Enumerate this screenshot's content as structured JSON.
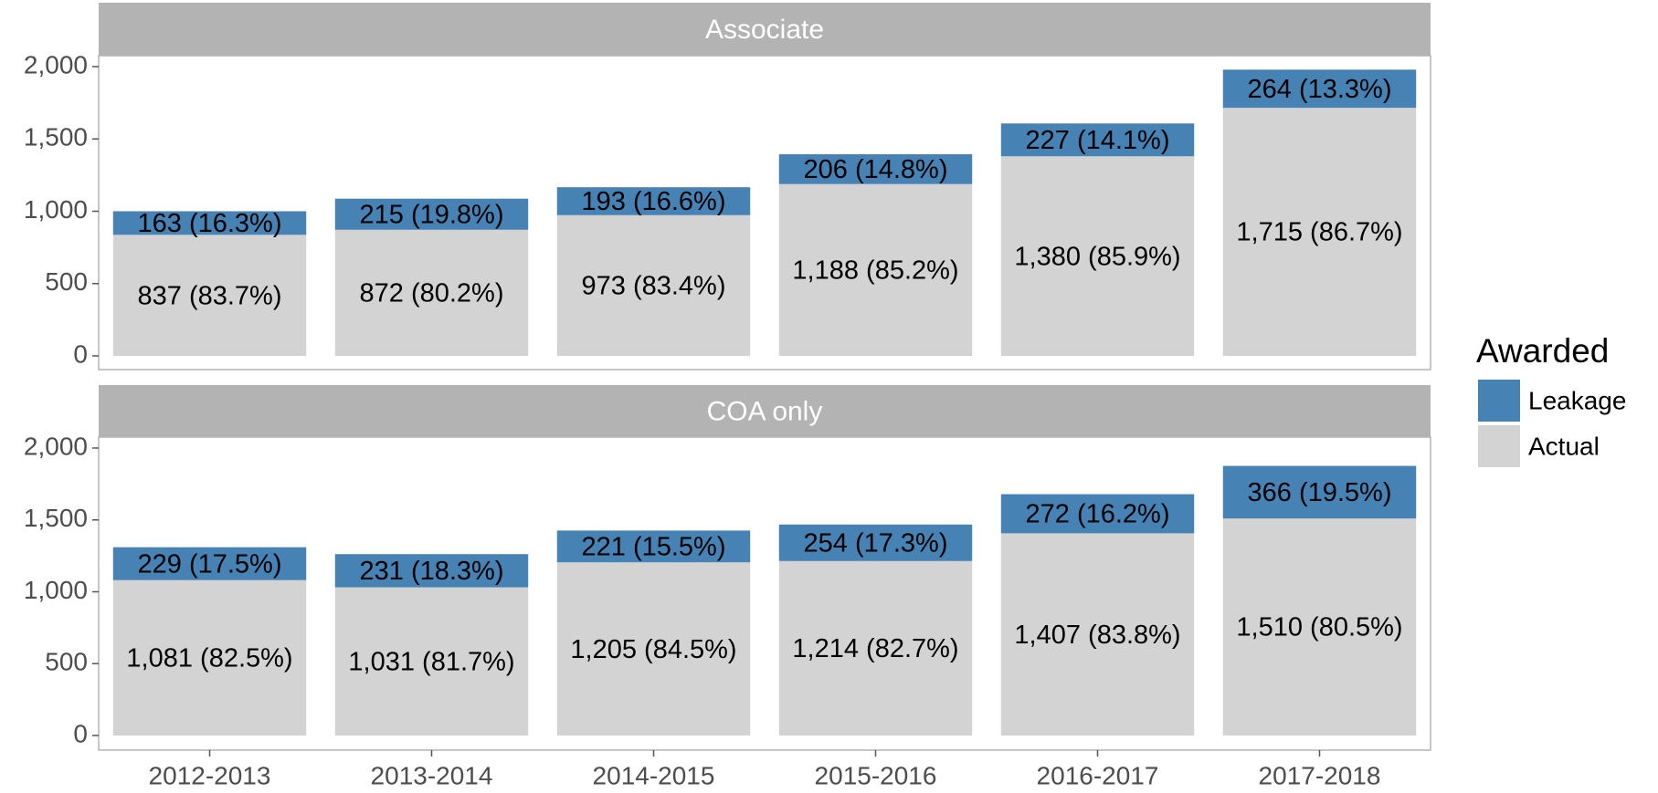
{
  "chart_data": {
    "type": "bar",
    "stacked": true,
    "categories": [
      "2012-2013",
      "2013-2014",
      "2014-2015",
      "2015-2016",
      "2016-2017",
      "2017-2018"
    ],
    "legend_title": "Awarded",
    "legend_position": "right",
    "series": [
      {
        "name": "Leakage",
        "color": "#4682b4"
      },
      {
        "name": "Actual",
        "color": "#d3d3d3"
      }
    ],
    "ylim": [
      0,
      2000
    ],
    "yticks": [
      0,
      500,
      {
        "value": 1000,
        "label": "1,000"
      },
      {
        "value": 1500,
        "label": "1,500"
      },
      {
        "value": 2000,
        "label": "2,000"
      }
    ],
    "panels": [
      {
        "title": "Associate",
        "values": [
          [
            163,
            215,
            193,
            206,
            227,
            264
          ],
          [
            837,
            872,
            973,
            1188,
            1380,
            1715
          ]
        ],
        "value_labels": [
          [
            "163 (16.3%)",
            "215 (19.8%)",
            "193 (16.6%)",
            "206 (14.8%)",
            "227 (14.1%)",
            "264 (13.3%)"
          ],
          [
            "837 (83.7%)",
            "872 (80.2%)",
            "973 (83.4%)",
            "1,188 (85.2%)",
            "1,380 (85.9%)",
            "1,715 (86.7%)"
          ]
        ]
      },
      {
        "title": "COA only",
        "values": [
          [
            229,
            231,
            221,
            254,
            272,
            366
          ],
          [
            1081,
            1031,
            1205,
            1214,
            1407,
            1510
          ]
        ],
        "value_labels": [
          [
            "229 (17.5%)",
            "231 (18.3%)",
            "221 (15.5%)",
            "254 (17.3%)",
            "272 (16.2%)",
            "366 (19.5%)"
          ],
          [
            "1,081 (82.5%)",
            "1,031 (81.7%)",
            "1,205 (84.5%)",
            "1,214 (82.7%)",
            "1,407 (83.8%)",
            "1,510 (80.5%)"
          ]
        ]
      }
    ]
  }
}
